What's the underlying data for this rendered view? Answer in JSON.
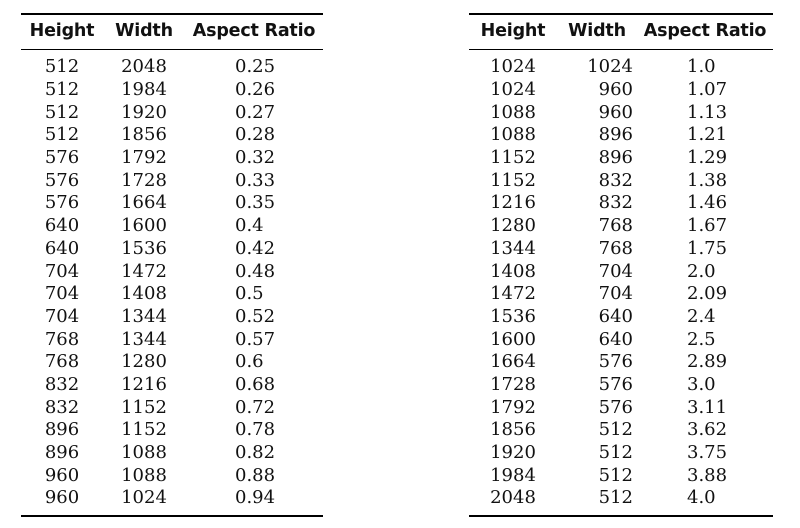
{
  "headers": {
    "height": "Height",
    "width": "Width",
    "aspect_ratio": "Aspect Ratio"
  },
  "left_table": {
    "rows": [
      {
        "height": "512",
        "width": "2048",
        "aspect_ratio": "0.25"
      },
      {
        "height": "512",
        "width": "1984",
        "aspect_ratio": "0.26"
      },
      {
        "height": "512",
        "width": "1920",
        "aspect_ratio": "0.27"
      },
      {
        "height": "512",
        "width": "1856",
        "aspect_ratio": "0.28"
      },
      {
        "height": "576",
        "width": "1792",
        "aspect_ratio": "0.32"
      },
      {
        "height": "576",
        "width": "1728",
        "aspect_ratio": "0.33"
      },
      {
        "height": "576",
        "width": "1664",
        "aspect_ratio": "0.35"
      },
      {
        "height": "640",
        "width": "1600",
        "aspect_ratio": "0.4"
      },
      {
        "height": "640",
        "width": "1536",
        "aspect_ratio": "0.42"
      },
      {
        "height": "704",
        "width": "1472",
        "aspect_ratio": "0.48"
      },
      {
        "height": "704",
        "width": "1408",
        "aspect_ratio": "0.5"
      },
      {
        "height": "704",
        "width": "1344",
        "aspect_ratio": "0.52"
      },
      {
        "height": "768",
        "width": "1344",
        "aspect_ratio": "0.57"
      },
      {
        "height": "768",
        "width": "1280",
        "aspect_ratio": "0.6"
      },
      {
        "height": "832",
        "width": "1216",
        "aspect_ratio": "0.68"
      },
      {
        "height": "832",
        "width": "1152",
        "aspect_ratio": "0.72"
      },
      {
        "height": "896",
        "width": "1152",
        "aspect_ratio": "0.78"
      },
      {
        "height": "896",
        "width": "1088",
        "aspect_ratio": "0.82"
      },
      {
        "height": "960",
        "width": "1088",
        "aspect_ratio": "0.88"
      },
      {
        "height": "960",
        "width": "1024",
        "aspect_ratio": "0.94"
      }
    ]
  },
  "right_table": {
    "rows": [
      {
        "height": "1024",
        "width": "1024",
        "aspect_ratio": "1.0"
      },
      {
        "height": "1024",
        "width": "960",
        "aspect_ratio": "1.07"
      },
      {
        "height": "1088",
        "width": "960",
        "aspect_ratio": "1.13"
      },
      {
        "height": "1088",
        "width": "896",
        "aspect_ratio": "1.21"
      },
      {
        "height": "1152",
        "width": "896",
        "aspect_ratio": "1.29"
      },
      {
        "height": "1152",
        "width": "832",
        "aspect_ratio": "1.38"
      },
      {
        "height": "1216",
        "width": "832",
        "aspect_ratio": "1.46"
      },
      {
        "height": "1280",
        "width": "768",
        "aspect_ratio": "1.67"
      },
      {
        "height": "1344",
        "width": "768",
        "aspect_ratio": "1.75"
      },
      {
        "height": "1408",
        "width": "704",
        "aspect_ratio": "2.0"
      },
      {
        "height": "1472",
        "width": "704",
        "aspect_ratio": "2.09"
      },
      {
        "height": "1536",
        "width": "640",
        "aspect_ratio": "2.4"
      },
      {
        "height": "1600",
        "width": "640",
        "aspect_ratio": "2.5"
      },
      {
        "height": "1664",
        "width": "576",
        "aspect_ratio": "2.89"
      },
      {
        "height": "1728",
        "width": "576",
        "aspect_ratio": "3.0"
      },
      {
        "height": "1792",
        "width": "576",
        "aspect_ratio": "3.11"
      },
      {
        "height": "1856",
        "width": "512",
        "aspect_ratio": "3.62"
      },
      {
        "height": "1920",
        "width": "512",
        "aspect_ratio": "3.75"
      },
      {
        "height": "1984",
        "width": "512",
        "aspect_ratio": "3.88"
      },
      {
        "height": "2048",
        "width": "512",
        "aspect_ratio": "4.0"
      }
    ]
  }
}
